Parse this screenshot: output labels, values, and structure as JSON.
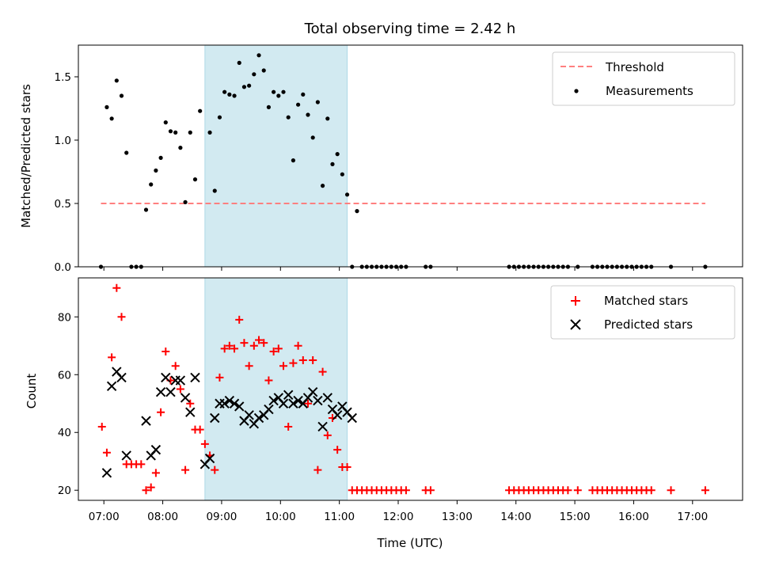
{
  "chart_data": [
    {
      "type": "scatter",
      "title": "Total observing time = 2.42 h",
      "ylabel": "Matched/Predicted stars",
      "xlim": [
        "06:34",
        "17:51"
      ],
      "ylim": [
        0,
        1.75
      ],
      "yticks": [
        0.0,
        0.5,
        1.0,
        1.5
      ],
      "yticklabels": [
        "0.0",
        "0.5",
        "1.0",
        "1.5"
      ],
      "legend_position": "top-right",
      "highlight_span": {
        "start": "08:43",
        "end": "11:08",
        "color": "#add8e6"
      },
      "colors": {
        "threshold": "#ff7f7f",
        "measurements": "#000000",
        "span": "#add8e6"
      },
      "series": [
        {
          "name": "Threshold",
          "kind": "dashed-line",
          "x": [
            "06:57",
            "17:13"
          ],
          "y": [
            0.5,
            0.5
          ]
        },
        {
          "name": "Measurements",
          "kind": "points",
          "x": [
            "06:57",
            "07:03",
            "07:08",
            "07:13",
            "07:18",
            "07:23",
            "07:28",
            "07:33",
            "07:38",
            "07:43",
            "07:48",
            "07:53",
            "07:58",
            "08:03",
            "08:08",
            "08:13",
            "08:18",
            "08:23",
            "08:28",
            "08:33",
            "08:38",
            "08:48",
            "08:53",
            "08:58",
            "09:03",
            "09:08",
            "09:13",
            "09:18",
            "09:23",
            "09:28",
            "09:33",
            "09:38",
            "09:43",
            "09:48",
            "09:53",
            "09:58",
            "10:03",
            "10:08",
            "10:13",
            "10:18",
            "10:23",
            "10:28",
            "10:33",
            "10:38",
            "10:43",
            "10:48",
            "10:53",
            "10:58",
            "11:03",
            "11:08",
            "11:13",
            "11:18",
            "11:23",
            "11:28",
            "11:33",
            "11:38",
            "11:43",
            "11:48",
            "11:53",
            "11:58",
            "12:03",
            "12:08",
            "12:28",
            "12:33",
            "13:53",
            "13:58",
            "14:03",
            "14:08",
            "14:13",
            "14:18",
            "14:23",
            "14:28",
            "14:33",
            "14:38",
            "14:43",
            "14:48",
            "14:53",
            "15:03",
            "15:18",
            "15:23",
            "15:28",
            "15:33",
            "15:38",
            "15:43",
            "15:48",
            "15:53",
            "15:58",
            "16:03",
            "16:08",
            "16:13",
            "16:18",
            "16:38",
            "17:13"
          ],
          "y": [
            0,
            1.26,
            1.17,
            1.47,
            1.35,
            0.9,
            0,
            0,
            0,
            0.45,
            0.65,
            0.76,
            0.86,
            1.14,
            1.07,
            1.06,
            0.94,
            0.51,
            1.06,
            0.69,
            1.23,
            1.06,
            0.6,
            1.18,
            1.38,
            1.36,
            1.35,
            1.61,
            1.42,
            1.43,
            1.52,
            1.67,
            1.55,
            1.26,
            1.38,
            1.35,
            1.38,
            1.18,
            0.84,
            1.28,
            1.36,
            1.2,
            1.02,
            1.3,
            0.64,
            1.17,
            0.81,
            0.89,
            0.73,
            0.57,
            0,
            0.44,
            0,
            0,
            0,
            0,
            0,
            0,
            0,
            0,
            0,
            0,
            0,
            0,
            0,
            0,
            0,
            0,
            0,
            0,
            0,
            0,
            0,
            0,
            0,
            0,
            0,
            0,
            0,
            0,
            0,
            0,
            0,
            0,
            0,
            0,
            0,
            0,
            0,
            0,
            0,
            0,
            0
          ]
        }
      ]
    },
    {
      "type": "scatter",
      "xlabel": "Time (UTC)",
      "ylabel": "Count",
      "xlim": [
        "06:34",
        "17:51"
      ],
      "ylim": [
        16.5,
        93.5
      ],
      "xticks": [
        "07:00",
        "08:00",
        "09:00",
        "10:00",
        "11:00",
        "12:00",
        "13:00",
        "14:00",
        "15:00",
        "16:00",
        "17:00"
      ],
      "yticks": [
        20,
        40,
        60,
        80
      ],
      "yticklabels": [
        "20",
        "40",
        "60",
        "80"
      ],
      "legend_position": "top-right",
      "highlight_span": {
        "start": "08:43",
        "end": "11:08",
        "color": "#add8e6"
      },
      "colors": {
        "matched": "#ff0000",
        "predicted": "#000000",
        "span": "#add8e6"
      },
      "series": [
        {
          "name": "Matched stars",
          "marker": "+",
          "x": [
            "06:58",
            "07:03",
            "07:08",
            "07:13",
            "07:18",
            "07:23",
            "07:28",
            "07:33",
            "07:38",
            "07:43",
            "07:48",
            "07:53",
            "07:58",
            "08:03",
            "08:08",
            "08:13",
            "08:18",
            "08:23",
            "08:28",
            "08:33",
            "08:38",
            "08:43",
            "08:48",
            "08:53",
            "08:58",
            "09:03",
            "09:08",
            "09:13",
            "09:18",
            "09:23",
            "09:28",
            "09:33",
            "09:38",
            "09:43",
            "09:48",
            "09:53",
            "09:58",
            "10:03",
            "10:08",
            "10:13",
            "10:18",
            "10:23",
            "10:28",
            "10:33",
            "10:38",
            "10:43",
            "10:48",
            "10:53",
            "10:58",
            "11:03",
            "11:08",
            "11:13",
            "11:18",
            "11:23",
            "11:28",
            "11:33",
            "11:38",
            "11:43",
            "11:48",
            "11:53",
            "11:58",
            "12:03",
            "12:08",
            "12:28",
            "12:33",
            "13:53",
            "13:58",
            "14:03",
            "14:08",
            "14:13",
            "14:18",
            "14:23",
            "14:28",
            "14:33",
            "14:38",
            "14:43",
            "14:48",
            "14:53",
            "15:03",
            "15:18",
            "15:23",
            "15:28",
            "15:33",
            "15:38",
            "15:43",
            "15:48",
            "15:53",
            "15:58",
            "16:03",
            "16:08",
            "16:13",
            "16:18",
            "16:38",
            "17:13"
          ],
          "y": [
            42,
            33,
            66,
            90,
            80,
            29,
            29,
            29,
            29,
            20,
            21,
            26,
            47,
            68,
            58,
            63,
            55,
            27,
            50,
            41,
            41,
            36,
            32,
            27,
            59,
            69,
            70,
            69,
            79,
            71,
            63,
            70,
            72,
            71,
            58,
            68,
            69,
            63,
            42,
            64,
            70,
            65,
            50,
            65,
            27,
            61,
            39,
            45,
            34,
            28,
            28,
            20,
            20,
            20,
            20,
            20,
            20,
            20,
            20,
            20,
            20,
            20,
            20,
            20,
            20,
            20,
            20,
            20,
            20,
            20,
            20,
            20,
            20,
            20,
            20,
            20,
            20,
            20,
            20,
            20,
            20,
            20,
            20,
            20,
            20,
            20,
            20,
            20,
            20,
            20,
            20,
            20,
            20,
            20
          ]
        },
        {
          "name": "Predicted stars",
          "marker": "x",
          "x": [
            "07:03",
            "07:08",
            "07:13",
            "07:18",
            "07:23",
            "07:43",
            "07:48",
            "07:53",
            "07:58",
            "08:03",
            "08:08",
            "08:13",
            "08:18",
            "08:23",
            "08:28",
            "08:33",
            "08:43",
            "08:48",
            "08:53",
            "08:58",
            "09:03",
            "09:08",
            "09:13",
            "09:18",
            "09:23",
            "09:28",
            "09:33",
            "09:38",
            "09:43",
            "09:48",
            "09:53",
            "09:58",
            "10:03",
            "10:08",
            "10:13",
            "10:18",
            "10:23",
            "10:28",
            "10:33",
            "10:38",
            "10:43",
            "10:48",
            "10:53",
            "10:58",
            "11:03",
            "11:08",
            "11:13"
          ],
          "y": [
            26,
            56,
            61,
            59,
            32,
            44,
            32,
            34,
            54,
            59,
            54,
            58,
            58,
            52,
            47,
            59,
            29,
            31,
            45,
            50,
            50,
            51,
            50,
            49,
            44,
            46,
            43,
            45,
            46,
            48,
            51,
            52,
            50,
            53,
            50,
            51,
            50,
            52,
            54,
            51,
            42,
            52,
            48,
            46,
            49,
            47,
            45
          ]
        }
      ]
    }
  ]
}
